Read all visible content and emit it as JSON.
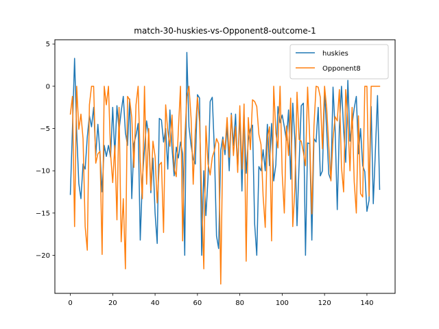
{
  "chart_data": {
    "type": "line",
    "title": "match-30-huskies-vs-Opponent8-outcome-1",
    "xlabel": "",
    "ylabel": "",
    "xlim": [
      -7.3,
      153.3
    ],
    "ylim": [
      -24.5,
      5.5
    ],
    "xticks": [
      0,
      20,
      40,
      60,
      80,
      100,
      120,
      140
    ],
    "yticks": [
      5,
      0,
      -5,
      -10,
      -15,
      -20
    ],
    "ytick_labels": [
      "5",
      "0",
      "−5",
      "−10",
      "−15",
      "−20"
    ],
    "grid": false,
    "legend": "top-right",
    "series": [
      {
        "name": "huskies",
        "color": "#1f77b4",
        "values": [
          -12.8,
          -5.0,
          3.3,
          -5.4,
          -11.5,
          -13.3,
          -9.2,
          -9.8,
          -6.0,
          -3.5,
          -4.8,
          -2.5,
          -8.2,
          -4.5,
          -8.0,
          -12.5,
          -7.0,
          -8.3,
          -7.0,
          -8.4,
          -2.5,
          -8.1,
          -2.3,
          -5.2,
          -3.0,
          -1.2,
          -5.5,
          -7.0,
          -1.5,
          -13.3,
          -6.8,
          -5.8,
          -4.4,
          -18.2,
          -11.0,
          -7.5,
          -4.1,
          -5.8,
          -12.6,
          -8.5,
          -15.0,
          -18.6,
          -3.8,
          -4.0,
          -6.6,
          -5.0,
          -9.8,
          -2.8,
          -7.3,
          -10.6,
          -7.2,
          -8.5,
          -6.6,
          -8.0,
          -20.0,
          4.0,
          -4.8,
          -7.0,
          -8.6,
          -9.2,
          -1.0,
          -1.4,
          -20.0,
          -10.0,
          -15.3,
          -10.8,
          -1.8,
          -1.3,
          -7.6,
          -17.7,
          -19.2,
          -7.6,
          -6.0,
          -8.1,
          -4.7,
          -10.0,
          -3.2,
          -7.0,
          -3.3,
          -9.9,
          -3.1,
          -12.4,
          -3.3,
          -10.3,
          -6.4,
          -5.1,
          -4.6,
          -16.3,
          -20.0,
          -9.5,
          -10.0,
          -7.5,
          -10.0,
          -4.5,
          -9.4,
          -4.4,
          -11.2,
          -9.3,
          -2.4,
          -4.3,
          -3.4,
          -4.8,
          -6.4,
          -2.8,
          -11.0,
          -2.0,
          -6.4,
          -16.5,
          -9.1,
          -2.3,
          -2.0,
          -20.0,
          -6.7,
          -6.8,
          -18.2,
          -6.2,
          -6.6,
          -2.5,
          -10.6,
          -10.0,
          -0.7,
          -5.2,
          -10.4,
          -11.1,
          -0.1,
          -5.2,
          -14.6,
          -4.8,
          0.0,
          -5.1,
          -9.0,
          0.7,
          -6.5,
          -4.5,
          -2.6,
          -1.2,
          -8.0,
          -5.0,
          -9.4,
          -10.1,
          -14.8,
          -13.5,
          -2.4,
          -13.9,
          -7.6,
          -1.1,
          -12.2
        ]
      },
      {
        "name": "Opponent8",
        "color": "#ff7f0e",
        "values": [
          -3.3,
          -1.2,
          -16.6,
          0.0,
          -5.1,
          -3.3,
          -6.2,
          -16.6,
          -19.4,
          -2.2,
          0.0,
          0.0,
          -9.1,
          -8.0,
          -7.7,
          -19.9,
          0.0,
          -2.2,
          0.0,
          -8.0,
          -11.4,
          -7.0,
          -15.8,
          -2.5,
          -18.4,
          -13.3,
          -21.6,
          -1.2,
          -1.6,
          -3.7,
          -9.6,
          -2.2,
          0.0,
          -8.9,
          -13.3,
          0.0,
          -11.6,
          -5.0,
          -12.3,
          -6.5,
          -8.3,
          -13.8,
          -9.3,
          -9.0,
          -17.3,
          -2.2,
          -5.3,
          -7.1,
          -3.4,
          -9.7,
          -10.7,
          -5.2,
          0.0,
          -18.3,
          -6.3,
          -1.2,
          0.0,
          -3.8,
          -11.6,
          -5.2,
          -1.3,
          -4.2,
          -13.0,
          -21.6,
          -4.7,
          -9.2,
          -10.5,
          -8.4,
          -7.6,
          -6.2,
          -6.8,
          -23.4,
          -6.3,
          -7.5,
          -3.7,
          -8.4,
          -3.4,
          -8.2,
          -4.8,
          -10.2,
          -2.3,
          -9.8,
          -2.1,
          -20.7,
          -3.7,
          -7.5,
          -1.6,
          -1.8,
          -2.4,
          -5.7,
          -6.9,
          -13.0,
          -16.7,
          -6.1,
          -4.8,
          -18.3,
          0.0,
          -5.5,
          -7.3,
          0.0,
          -10.3,
          -15.0,
          -4.7,
          -8.2,
          -1.4,
          -16.6,
          -12.0,
          -0.7,
          -6.3,
          -6.5,
          -7.8,
          -9.4,
          -0.1,
          -6.2,
          -15.1,
          -4.7,
          0.0,
          -0.1,
          -1.3,
          -7.4,
          0.0,
          -2.6,
          -7.1,
          -11.2,
          -6.2,
          -3.6,
          -4.1,
          -0.4,
          -9.6,
          -12.5,
          -0.4,
          -4.2,
          -10.0,
          -2.5,
          -11.3,
          -15.0,
          -3.5,
          -12.7,
          -13.1,
          0.0,
          0.0,
          -13.0,
          0.0,
          0.0,
          0.0,
          0.0,
          0.0
        ]
      }
    ]
  }
}
